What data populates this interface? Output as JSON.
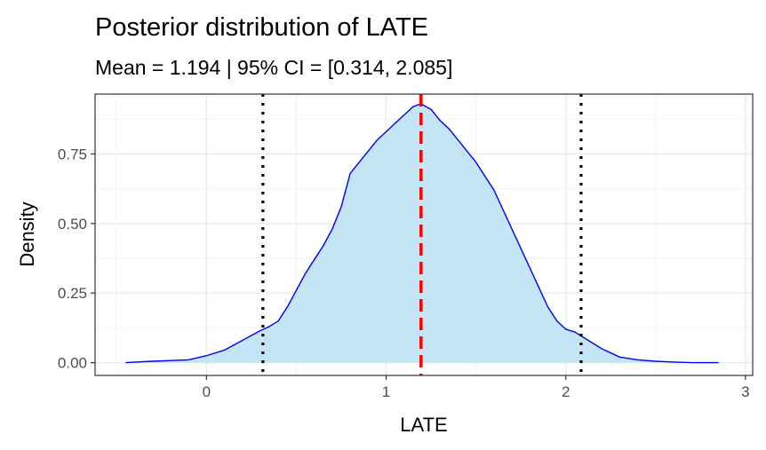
{
  "chart_data": {
    "type": "area",
    "title": "Posterior distribution of LATE",
    "subtitle": "Mean = 1.194 | 95% CI = [0.314, 2.085]",
    "xlabel": "LATE",
    "ylabel": "Density",
    "xlim": [
      -0.62,
      3.04
    ],
    "ylim": [
      -0.046,
      0.965
    ],
    "x_ticks": [
      0,
      1,
      2,
      3
    ],
    "x_tick_labels": [
      "0",
      "1",
      "2",
      "3"
    ],
    "y_ticks": [
      0,
      0.25,
      0.5,
      0.75
    ],
    "y_tick_labels": [
      "0.00",
      "0.25",
      "0.50",
      "0.75"
    ],
    "x_minor_ticks": [
      -0.5,
      0.5,
      1.5,
      2.5
    ],
    "y_minor_ticks": [
      0.125,
      0.375,
      0.625,
      0.875
    ],
    "grid": true,
    "series": [
      {
        "x": [
          -0.45,
          -0.3,
          -0.1,
          0.0,
          0.1,
          0.2,
          0.3,
          0.35,
          0.4,
          0.45,
          0.5,
          0.55,
          0.6,
          0.65,
          0.7,
          0.75,
          0.8,
          0.85,
          0.9,
          0.95,
          1.0,
          1.05,
          1.1,
          1.15,
          1.194,
          1.25,
          1.3,
          1.35,
          1.4,
          1.45,
          1.5,
          1.55,
          1.6,
          1.65,
          1.7,
          1.75,
          1.8,
          1.85,
          1.9,
          1.95,
          2.0,
          2.05,
          2.1,
          2.15,
          2.2,
          2.3,
          2.4,
          2.5,
          2.6,
          2.7,
          2.85
        ],
        "y": [
          0.0,
          0.005,
          0.01,
          0.025,
          0.045,
          0.08,
          0.115,
          0.13,
          0.15,
          0.2,
          0.26,
          0.32,
          0.37,
          0.42,
          0.48,
          0.56,
          0.68,
          0.72,
          0.76,
          0.8,
          0.83,
          0.86,
          0.89,
          0.92,
          0.93,
          0.91,
          0.87,
          0.84,
          0.8,
          0.76,
          0.72,
          0.67,
          0.62,
          0.55,
          0.48,
          0.41,
          0.34,
          0.27,
          0.2,
          0.15,
          0.12,
          0.11,
          0.09,
          0.07,
          0.05,
          0.02,
          0.01,
          0.005,
          0.002,
          0.0,
          0.0
        ],
        "color": "#0000ff",
        "fill": "#c4e5f5"
      }
    ],
    "vlines": [
      {
        "x": 1.194,
        "style": "dashed",
        "color": "#ff0000"
      },
      {
        "x": 0.314,
        "style": "dotted",
        "color": "#000000"
      },
      {
        "x": 2.085,
        "style": "dotted",
        "color": "#000000"
      }
    ]
  }
}
